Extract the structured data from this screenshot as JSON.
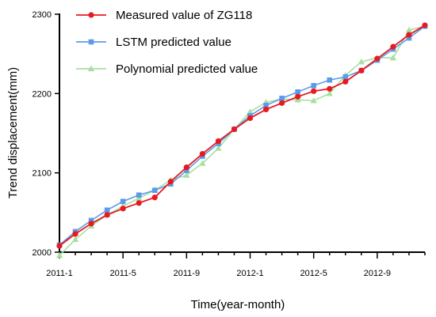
{
  "chart_data": {
    "type": "line",
    "xlabel": "Time(year-month)",
    "ylabel": "Trend displacement(mm)",
    "ylim": [
      2000,
      2300
    ],
    "yticks": [
      2000,
      2100,
      2200,
      2300
    ],
    "x_start": "2011-1",
    "x_end": "2012-12",
    "x_tick_labels": [
      "2011-1",
      "2011-5",
      "2011-9",
      "2012-1",
      "2012-5",
      "2012-9"
    ],
    "x_minor_tick_labels": [
      "2011-2",
      "2011-3",
      "2011-4",
      "2011-6",
      "2011-7",
      "2011-8",
      "2011-10",
      "2011-11",
      "2011-12",
      "2012-2",
      "2012-3",
      "2012-4",
      "2012-6",
      "2012-7",
      "2012-8",
      "2012-10",
      "2012-11",
      "2012-12"
    ],
    "legend_position": "top-left",
    "grid": false,
    "x": [
      "2011-1",
      "2011-2",
      "2011-3",
      "2011-4",
      "2011-5",
      "2011-6",
      "2011-7",
      "2011-8",
      "2011-9",
      "2011-10",
      "2011-11",
      "2011-12",
      "2012-1",
      "2012-2",
      "2012-3",
      "2012-4",
      "2012-5",
      "2012-6",
      "2012-7",
      "2012-8",
      "2012-9",
      "2012-10",
      "2012-11",
      "2012-12"
    ],
    "series": [
      {
        "name": "Measured value of ZG118",
        "color": "#e8191f",
        "marker": "circle",
        "values": [
          2008,
          2023,
          2036,
          2047,
          2055,
          2062,
          2069,
          2089,
          2107,
          2124,
          2140,
          2155,
          2169,
          2180,
          2188,
          2196,
          2203,
          2206,
          2215,
          2229,
          2244,
          2259,
          2274,
          2286
        ]
      },
      {
        "name": "LSTM predicted value",
        "color": "#5b9bea",
        "marker": "square",
        "values": [
          2009,
          2026,
          2040,
          2053,
          2064,
          2072,
          2078,
          2086,
          2103,
          2121,
          2137,
          2155,
          2172,
          2185,
          2194,
          2202,
          2210,
          2217,
          2221,
          2229,
          2242,
          2256,
          2270,
          2285
        ]
      },
      {
        "name": "Polynomial predicted value",
        "color": "#a6e0a0",
        "marker": "triangle",
        "values": [
          1996,
          2016,
          2033,
          2047,
          2058,
          2068,
          2078,
          2091,
          2097,
          2112,
          2131,
          2155,
          2177,
          2189,
          2193,
          2192,
          2191,
          2200,
          2223,
          2240,
          2245,
          2245,
          2280,
          2285
        ]
      }
    ]
  }
}
